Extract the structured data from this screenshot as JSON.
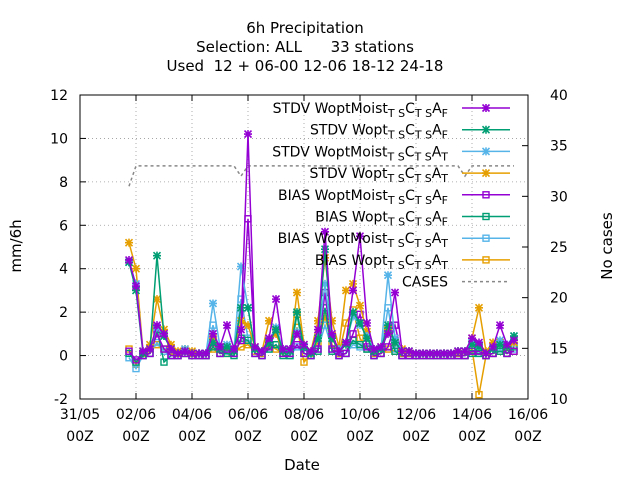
{
  "title_lines": [
    "6h Precipitation",
    "Selection: ALL      33 stations",
    "Used  12 + 06-00 12-06 18-12 24-18"
  ],
  "chart_data": {
    "type": "line",
    "title": "6h Precipitation",
    "subtitle": [
      "Selection: ALL      33 stations",
      "Used  12 + 06-00 12-06 18-12 24-18"
    ],
    "xlabel": "Date",
    "ylabel": "mm/6h",
    "y2label": "No cases",
    "xlim": [
      0,
      16
    ],
    "ylim": [
      -2,
      12
    ],
    "y2lim": [
      10,
      40
    ],
    "x_ticks": [
      {
        "x": 0,
        "line1": "31/05",
        "line2": "00Z"
      },
      {
        "x": 2,
        "line1": "02/06",
        "line2": "00Z"
      },
      {
        "x": 4,
        "line1": "04/06",
        "line2": "00Z"
      },
      {
        "x": 6,
        "line1": "06/06",
        "line2": "00Z"
      },
      {
        "x": 8,
        "line1": "08/06",
        "line2": "00Z"
      },
      {
        "x": 10,
        "line1": "10/06",
        "line2": "00Z"
      },
      {
        "x": 12,
        "line1": "12/06",
        "line2": "00Z"
      },
      {
        "x": 14,
        "line1": "14/06",
        "line2": "00Z"
      },
      {
        "x": 16,
        "line1": "16/06",
        "line2": "00Z"
      }
    ],
    "y_ticks": [
      -2,
      0,
      2,
      4,
      6,
      8,
      10,
      12
    ],
    "y2_ticks": [
      10,
      15,
      20,
      25,
      30,
      35,
      40
    ],
    "grid": true,
    "legend_position": "top-right",
    "x": [
      1.75,
      2.0,
      2.25,
      2.5,
      2.75,
      3.0,
      3.25,
      3.5,
      3.75,
      4.0,
      4.25,
      4.5,
      4.75,
      5.0,
      5.25,
      5.5,
      5.75,
      6.0,
      6.25,
      6.5,
      6.75,
      7.0,
      7.25,
      7.5,
      7.75,
      8.0,
      8.25,
      8.5,
      8.75,
      9.0,
      9.25,
      9.5,
      9.75,
      10.0,
      10.25,
      10.5,
      10.75,
      11.0,
      11.25,
      11.5,
      11.75,
      12.0,
      12.25,
      12.5,
      12.75,
      13.0,
      13.25,
      13.5,
      13.75,
      14.0,
      14.25,
      14.5,
      14.75,
      15.0,
      15.25,
      15.5
    ],
    "series": [
      {
        "name": "STDV WoptMoist_TSC_TSA_F",
        "color": "#9400d3",
        "marker": "x",
        "values": [
          4.4,
          3.2,
          0.2,
          0.3,
          1.4,
          1.0,
          0.3,
          0.1,
          0.2,
          0.1,
          0.1,
          0.1,
          1.0,
          0.4,
          1.4,
          0.3,
          1.2,
          10.2,
          0.4,
          0.2,
          0.8,
          2.6,
          0.3,
          0.3,
          1.0,
          0.5,
          0.2,
          1.2,
          5.7,
          1.0,
          0.2,
          0.6,
          3.0,
          5.5,
          1.5,
          0.3,
          0.4,
          1.0,
          2.9,
          0.2,
          0.2,
          0.1,
          0.1,
          0.1,
          0.1,
          0.1,
          0.1,
          0.2,
          0.2,
          0.8,
          0.6,
          0.1,
          0.4,
          1.4,
          0.5,
          0.7
        ]
      },
      {
        "name": "STDV Wopt_TSC_TSA_F",
        "color": "#009e73",
        "marker": "x",
        "values": [
          4.3,
          3.0,
          0.1,
          0.3,
          4.6,
          0.9,
          0.3,
          0.1,
          0.2,
          0.1,
          0.1,
          0.1,
          0.6,
          0.3,
          0.4,
          0.2,
          2.2,
          2.2,
          0.3,
          0.2,
          0.6,
          1.2,
          0.2,
          0.2,
          2.0,
          0.4,
          0.1,
          0.8,
          4.9,
          0.8,
          0.2,
          0.5,
          2.0,
          1.5,
          0.8,
          0.2,
          0.3,
          1.4,
          0.6,
          0.2,
          0.2,
          0.1,
          0.1,
          0.1,
          0.1,
          0.1,
          0.1,
          0.2,
          0.2,
          0.5,
          0.4,
          0.1,
          0.3,
          0.5,
          0.4,
          0.9
        ]
      },
      {
        "name": "STDV WoptMoist_TSC_TSA_T",
        "color": "#56b4e9",
        "marker": "x",
        "values": [
          4.3,
          3.3,
          0.2,
          0.3,
          1.3,
          0.9,
          0.3,
          0.1,
          0.3,
          0.1,
          0.1,
          0.1,
          2.4,
          0.4,
          0.5,
          0.3,
          4.1,
          2.2,
          0.3,
          0.2,
          0.7,
          1.3,
          0.3,
          0.2,
          1.1,
          0.4,
          0.1,
          0.8,
          3.3,
          0.8,
          0.3,
          0.6,
          1.8,
          1.4,
          0.9,
          0.3,
          0.3,
          3.7,
          0.8,
          0.2,
          0.2,
          0.1,
          0.1,
          0.1,
          0.1,
          0.1,
          0.1,
          0.2,
          0.2,
          0.6,
          0.5,
          0.1,
          0.3,
          0.7,
          0.5,
          0.9
        ]
      },
      {
        "name": "STDV Wopt_TSC_TSA_T",
        "color": "#e69f00",
        "marker": "x",
        "values": [
          5.2,
          4.0,
          0.2,
          0.5,
          2.6,
          1.2,
          0.5,
          0.2,
          0.3,
          0.2,
          0.1,
          0.1,
          0.8,
          0.4,
          0.4,
          0.3,
          1.6,
          1.4,
          0.4,
          0.2,
          1.6,
          1.0,
          0.2,
          0.2,
          2.9,
          0.5,
          0.2,
          1.6,
          4.5,
          1.6,
          0.4,
          3.0,
          3.3,
          2.3,
          1.1,
          0.3,
          0.4,
          1.2,
          0.6,
          0.3,
          0.2,
          0.1,
          0.1,
          0.1,
          0.1,
          0.1,
          0.1,
          0.2,
          0.2,
          0.8,
          2.2,
          0.2,
          0.6,
          0.6,
          0.4,
          0.6
        ]
      },
      {
        "name": "BIAS WoptMoist_TSC_TSA_F",
        "color": "#9400d3",
        "marker": "square",
        "values": [
          0.2,
          -0.2,
          0.0,
          0.1,
          1.0,
          0.3,
          0.0,
          0.0,
          0.1,
          0.0,
          0.0,
          0.0,
          0.6,
          0.1,
          0.3,
          0.1,
          0.7,
          6.3,
          0.1,
          0.0,
          0.4,
          1.1,
          0.1,
          0.1,
          0.5,
          0.1,
          0.0,
          0.3,
          2.9,
          0.3,
          0.0,
          0.1,
          1.0,
          1.9,
          0.4,
          0.0,
          0.1,
          0.4,
          1.4,
          0.0,
          0.0,
          0.0,
          0.0,
          0.0,
          0.0,
          0.0,
          0.0,
          0.0,
          0.0,
          0.2,
          0.2,
          0.0,
          0.1,
          0.6,
          0.1,
          0.2
        ]
      },
      {
        "name": "BIAS Wopt_TSC_TSA_F",
        "color": "#009e73",
        "marker": "square",
        "values": [
          0.1,
          -0.3,
          0.0,
          0.1,
          1.2,
          -0.3,
          0.0,
          0.0,
          0.1,
          0.0,
          0.0,
          0.0,
          0.4,
          0.1,
          0.1,
          0.0,
          0.8,
          0.7,
          0.1,
          0.0,
          0.3,
          0.5,
          0.0,
          0.0,
          1.9,
          0.1,
          0.0,
          0.2,
          2.2,
          0.2,
          0.0,
          0.1,
          0.7,
          0.5,
          0.3,
          0.0,
          0.1,
          1.2,
          0.2,
          0.0,
          0.0,
          0.0,
          0.0,
          0.0,
          0.0,
          0.0,
          0.0,
          0.0,
          0.0,
          0.1,
          0.1,
          0.0,
          0.1,
          0.2,
          0.1,
          0.4
        ]
      },
      {
        "name": "BIAS WoptMoist_TSC_TSA_T",
        "color": "#56b4e9",
        "marker": "square",
        "values": [
          -0.1,
          -0.6,
          0.0,
          0.1,
          0.6,
          0.2,
          0.0,
          0.0,
          0.1,
          0.0,
          0.0,
          0.0,
          1.4,
          0.1,
          0.2,
          0.1,
          2.6,
          0.8,
          0.1,
          0.0,
          0.3,
          0.5,
          0.1,
          0.0,
          0.4,
          0.1,
          0.0,
          0.3,
          1.4,
          0.3,
          0.0,
          0.1,
          0.5,
          0.4,
          0.3,
          0.0,
          0.1,
          2.2,
          0.3,
          0.0,
          0.0,
          0.0,
          0.0,
          0.0,
          0.0,
          0.0,
          0.0,
          0.0,
          0.0,
          0.2,
          0.1,
          0.0,
          0.1,
          0.3,
          0.1,
          0.3
        ]
      },
      {
        "name": "BIAS Wopt_TSC_TSA_T",
        "color": "#e69f00",
        "marker": "square",
        "values": [
          0.3,
          -0.4,
          0.1,
          0.3,
          0.5,
          0.3,
          0.2,
          0.1,
          0.1,
          0.1,
          0.0,
          0.0,
          0.3,
          0.1,
          0.1,
          0.1,
          0.4,
          0.5,
          0.2,
          0.1,
          0.5,
          0.3,
          0.1,
          0.1,
          1.3,
          -0.3,
          0.1,
          0.6,
          1.8,
          0.5,
          0.1,
          1.5,
          2.1,
          0.8,
          0.3,
          0.1,
          0.1,
          0.3,
          0.2,
          0.1,
          0.1,
          0.0,
          0.0,
          0.0,
          0.0,
          0.0,
          0.0,
          0.1,
          0.0,
          0.3,
          -1.8,
          0.0,
          0.1,
          0.2,
          0.1,
          0.2
        ]
      },
      {
        "name": "CASES",
        "color": "#888888",
        "marker": "none",
        "dashed": true,
        "axis": "y2",
        "x_cases": [
          1.75,
          2.0,
          2.25,
          2.5,
          2.75,
          3.0,
          3.25,
          3.5,
          3.75,
          4.0,
          4.25,
          4.5,
          4.75,
          5.0,
          5.25,
          5.5,
          5.75,
          6.0,
          6.25,
          6.5,
          6.75,
          7.0,
          7.25,
          7.5,
          7.75,
          8.0,
          8.25,
          8.5,
          8.75,
          9.0,
          9.25,
          9.5,
          9.75,
          10.0,
          10.25,
          10.5,
          10.75,
          11.0,
          11.25,
          11.5,
          11.75,
          12.0,
          12.25,
          12.5,
          12.75,
          13.0,
          13.25,
          13.5,
          13.75,
          14.0,
          14.25,
          14.5,
          14.75,
          15.0,
          15.25,
          15.5
        ],
        "values": [
          31,
          33,
          33,
          33,
          33,
          33,
          33,
          33,
          33,
          33,
          33,
          33,
          33,
          33,
          33,
          33,
          32,
          33,
          33,
          33,
          33,
          33,
          33,
          33,
          33,
          33,
          33,
          33,
          33,
          33,
          33,
          33,
          33,
          33,
          33,
          33,
          33,
          33,
          33,
          33,
          33,
          33,
          33,
          33,
          33,
          33,
          33,
          33,
          32,
          33,
          33,
          33,
          33,
          33,
          33,
          33
        ]
      }
    ]
  }
}
